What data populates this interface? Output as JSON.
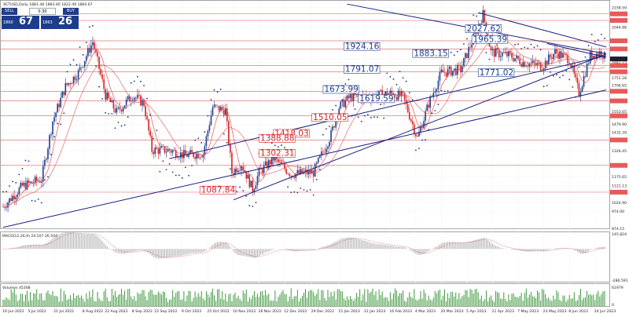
{
  "symbol_info": "XETUSD,Daily  1881.48 1883.40 1822.49 1860.67",
  "trade_panel": {
    "sell_label": "SELL",
    "buy_label": "BUY",
    "lots": "0.30",
    "sell_small": "1860",
    "sell_big": "67",
    "buy_small": "1863",
    "buy_big": "26"
  },
  "colors": {
    "bull": "#1e3c8c",
    "bear": "#d62020",
    "ma": "#e05050",
    "psar": "#1a2a8c",
    "trendline": "#1a2080",
    "hline": "#e07a7a",
    "grid": "#e6e6e6",
    "macd_signal": "#e05050"
  },
  "chart_data": {
    "type": "candlestick",
    "price_axis_ticks": [
      "2158.59",
      "2122.89",
      "2084.55",
      "2044.88",
      "1966.08",
      "1918.79",
      "1860.67",
      "1842.15",
      "1821.58",
      "1785.79",
      "1751.28",
      "1706.65",
      "1672.11",
      "1616.19",
      "1553.65",
      "1529.18",
      "1479.90",
      "1432.39",
      "1388.77",
      "1326.45",
      "1240.77",
      "1175.65",
      "1121.13",
      "1084.67",
      "1024.90",
      "974.00",
      "874.15"
    ],
    "price_range": [
      874.15,
      2190
    ],
    "date_ticks": [
      "19 Jun 2022",
      "5 Jul 2022",
      "21 Jul 2022",
      "8 Aug 2022",
      "22 Aug 2022",
      "8 Sep 2022",
      "22 Sep 2022",
      "9 Oct 2022",
      "25 Oct 2022",
      "10 Nov 2022",
      "26 Nov 2022",
      "12 Dec 2022",
      "29 Dec 2022",
      "15 Jan 2023",
      "31 Jan 2023",
      "16 Feb 2023",
      "4 Mar 2023",
      "20 Mar 2023",
      "5 Apr 2023",
      "21 Apr 2023",
      "7 May 2023",
      "23 May 2023",
      "8 Jun 2023",
      "24 Jun 2023"
    ],
    "pivot_labels": [
      {
        "text": "2027.62",
        "color": "blue",
        "value": 2027.62,
        "date": "4 Apr 2023"
      },
      {
        "text": "1965.39",
        "color": "blue",
        "value": 1965.39,
        "date": "8 Apr 2023"
      },
      {
        "text": "1924.16",
        "color": "blue",
        "value": 1924.16,
        "date": "18 Jan 2023"
      },
      {
        "text": "1883.15",
        "color": "blue",
        "value": 1883.15,
        "date": "2 Mar 2023"
      },
      {
        "text": "1791.07",
        "color": "blue",
        "value": 1791.07,
        "date": "18 Jan 2023"
      },
      {
        "text": "1771.02",
        "color": "blue",
        "value": 1771.02,
        "date": "12 Apr 2023"
      },
      {
        "text": "1673.99",
        "color": "blue",
        "value": 1673.99,
        "date": "5 Jan 2023"
      },
      {
        "text": "1619.59",
        "color": "blue",
        "value": 1619.59,
        "date": "27 Jan 2023"
      },
      {
        "text": "1510.05",
        "color": "red",
        "value": 1510.05,
        "date": "29 Dec 2022"
      },
      {
        "text": "1418.03",
        "color": "red",
        "value": 1418.03,
        "date": "5 Dec 2022"
      },
      {
        "text": "1388.88",
        "color": "red",
        "value": 1388.88,
        "date": "26 Nov 2022"
      },
      {
        "text": "1302.31",
        "color": "red",
        "value": 1302.31,
        "date": "26 Nov 2022"
      },
      {
        "text": "1087.84",
        "color": "red",
        "value": 1087.84,
        "date": "20 Oct 2022"
      }
    ],
    "support_levels": [
      2122.89,
      2084.55,
      1966.08,
      1918.79,
      1821.58,
      1785.79,
      1672.11,
      1616.19,
      1529.18,
      1388.77,
      1240.77,
      1084.67
    ],
    "candles_note": "daily OHLC approximated from chart",
    "macd": {
      "label": "MACD(12,26,9) 24.207 26.544",
      "ticks": [
        "145.824",
        "0.00",
        "-286.591"
      ],
      "range": [
        -286.591,
        145.824
      ]
    },
    "volume": {
      "label": "Volumes 45308",
      "ticks": [
        "61979",
        "0"
      ],
      "max": 61979
    }
  }
}
